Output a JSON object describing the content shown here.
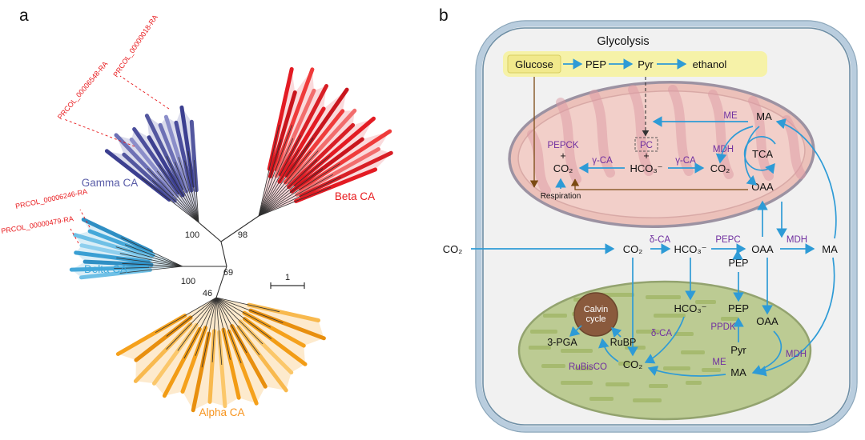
{
  "figure": {
    "panel_a_letter": "a",
    "panel_b_letter": "b"
  },
  "tree": {
    "clades": {
      "gamma": {
        "label": "Gamma CA",
        "color": "#5a5da8"
      },
      "beta": {
        "label": "Beta CA",
        "color": "#e8191c"
      },
      "delta": {
        "label": "Delta CA",
        "color": "#3fa9dc"
      },
      "alpha": {
        "label": "Alpha CA",
        "color": "#f7941d"
      }
    },
    "tip_labels": {
      "t1": "PRCOL_00000018-RA",
      "t2": "PRCOL_00006548-RA",
      "t3": "PRCOL_00006246-RA",
      "t4": "PRCOL_00000479-RA"
    },
    "support_values": {
      "n_gamma": "100",
      "n_beta": "98",
      "n_center": "69",
      "n_delta": "100",
      "n_alpha": "46"
    },
    "scale_bar_label": "1",
    "tip_label_color": "#e8191c"
  },
  "cell": {
    "glycolysis": {
      "title": "Glycolysis",
      "glucose": "Glucose",
      "pep": "PEP",
      "pyr": "Pyr",
      "ethanol": "ethanol"
    },
    "mitochondrion": {
      "pepck": "PEPCK",
      "plus_1": "+",
      "co2_a": "CO₂",
      "gamma_ca_left": "γ-CA",
      "pc": "PC",
      "plus_2": "+",
      "hco3": "HCO₃⁻",
      "gamma_ca_right": "γ-CA",
      "co2_b": "CO₂",
      "mdh": "MDH",
      "me": "ME",
      "ma": "MA",
      "tca": "TCA",
      "oaa": "OAA",
      "respiration": "Respiration"
    },
    "cytosol": {
      "co2_outside": "CO₂",
      "co2": "CO₂",
      "delta_ca": "δ-CA",
      "hco3": "HCO₃⁻",
      "pepc": "PEPC",
      "pep": "PEP",
      "oaa": "OAA",
      "mdh": "MDH",
      "ma": "MA"
    },
    "chloroplast": {
      "calvin_line1": "Calvin",
      "calvin_line2": "cycle",
      "pga": "3-PGA",
      "rubp": "RuBP",
      "rubisco": "RuBisCO",
      "co2": "CO₂",
      "hco3": "HCO₃⁻",
      "delta_ca": "δ-CA",
      "pep": "PEP",
      "ppdk": "PPDK",
      "pyr": "Pyr",
      "me": "ME",
      "ma": "MA",
      "oaa": "OAA",
      "mdh": "MDH"
    },
    "colors": {
      "arrow_blue": "#2e9bd6",
      "enzyme_purple": "#7030a0",
      "glycolysis_band": "#f6f2a8",
      "mitochondrion_fill": "#ecc1ba",
      "chloroplast_fill": "#bccb93",
      "calvin_circle": "#8a5a3d",
      "cell_wall": "#b9cdde"
    }
  }
}
